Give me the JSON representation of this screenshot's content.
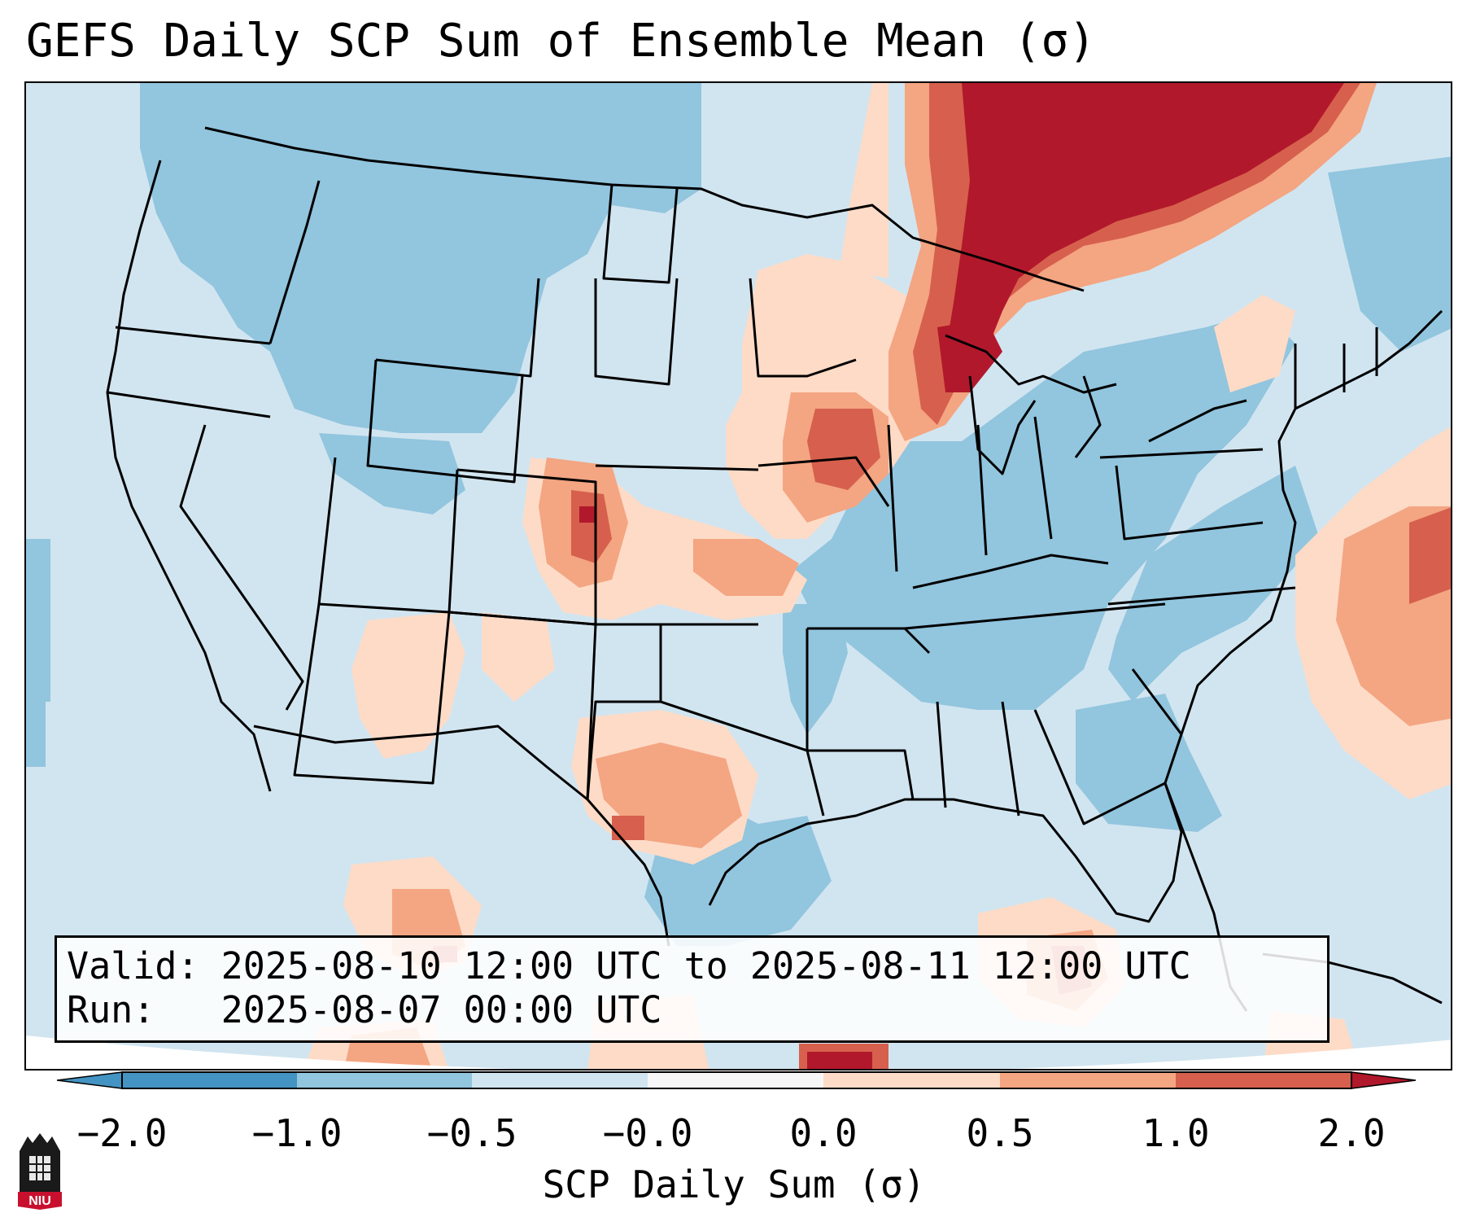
{
  "title": "GEFS Daily SCP Sum of Ensemble Mean (σ)",
  "info": {
    "valid_line": "Valid: 2025-08-10 12:00 UTC to 2025-08-11 12:00 UTC",
    "run_line": "Run:   2025-08-07 00:00 UTC"
  },
  "colorbar": {
    "label": "SCP Daily Sum (σ)",
    "ticks": [
      "−2.0",
      "−1.0",
      "−0.5",
      "−0.0",
      "0.0",
      "0.5",
      "1.0",
      "2.0"
    ],
    "colors": [
      "#4393c3",
      "#92c5de",
      "#d1e5f0",
      "#f7f7f7",
      "#fddbc7",
      "#f4a582",
      "#d6604d",
      "#b2182b"
    ]
  },
  "logo": {
    "text": "NIU"
  },
  "colors": {
    "strong_negative": "#4393c3",
    "negative": "#92c5de",
    "weak_negative": "#d1e5f0",
    "neutral": "#f7f7f7",
    "weak_positive": "#fddbc7",
    "positive": "#f4a582",
    "strong_positive": "#d6604d",
    "extreme_positive": "#b2182b"
  }
}
